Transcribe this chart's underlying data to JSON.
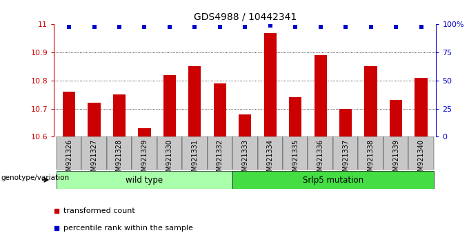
{
  "title": "GDS4988 / 10442341",
  "samples": [
    "GSM921326",
    "GSM921327",
    "GSM921328",
    "GSM921329",
    "GSM921330",
    "GSM921331",
    "GSM921332",
    "GSM921333",
    "GSM921334",
    "GSM921335",
    "GSM921336",
    "GSM921337",
    "GSM921338",
    "GSM921339",
    "GSM921340"
  ],
  "bar_values": [
    10.76,
    10.72,
    10.75,
    10.63,
    10.82,
    10.85,
    10.79,
    10.68,
    10.97,
    10.74,
    10.89,
    10.7,
    10.85,
    10.73,
    10.81
  ],
  "percentile_values": [
    98,
    98,
    98,
    98,
    98,
    98,
    98,
    98,
    99,
    98,
    98,
    98,
    98,
    98,
    98
  ],
  "ylim_left": [
    10.6,
    11.0
  ],
  "ylim_right": [
    0,
    100
  ],
  "bar_color": "#CC0000",
  "dot_color": "#0000CC",
  "axis_color_left": "#CC0000",
  "axis_color_right": "#0000CC",
  "tick_positions_left": [
    10.6,
    10.7,
    10.8,
    10.9,
    11.0
  ],
  "tick_labels_left": [
    "10.6",
    "10.7",
    "10.8",
    "10.9",
    "11"
  ],
  "tick_positions_right": [
    0,
    25,
    50,
    75,
    100
  ],
  "tick_labels_right": [
    "0",
    "25",
    "50",
    "75",
    "100%"
  ],
  "group1_label": "wild type",
  "group2_label": "Srlp5 mutation",
  "group1_indices": [
    0,
    1,
    2,
    3,
    4,
    5,
    6
  ],
  "group2_indices": [
    7,
    8,
    9,
    10,
    11,
    12,
    13,
    14
  ],
  "group1_color": "#AAFFAA",
  "group2_color": "#44DD44",
  "xlabel_label": "genotype/variation",
  "legend_red": "transformed count",
  "legend_blue": "percentile rank within the sample",
  "bar_width": 0.5,
  "ybase": 10.6,
  "grid_yticks": [
    10.7,
    10.8,
    10.9
  ],
  "xtick_bg_color": "#C8C8C8"
}
